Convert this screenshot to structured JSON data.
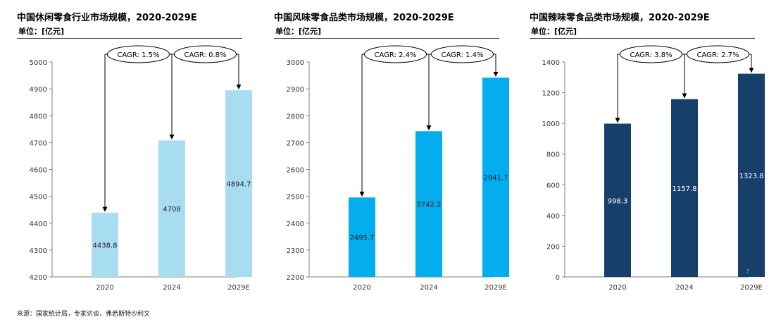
{
  "chart_data": [
    {
      "type": "bar",
      "title": "中国休闲零食行业市场规模，2020-2029E",
      "unit_label": "单位：[亿元]",
      "categories": [
        "2020",
        "2024",
        "2029E"
      ],
      "values": [
        4438.8,
        4708,
        4894.7
      ],
      "value_labels": [
        "4438.8",
        "4708",
        "4894.7"
      ],
      "ylim": [
        4200,
        5000
      ],
      "yticks": [
        4200,
        4300,
        4400,
        4500,
        4600,
        4700,
        4800,
        4900,
        5000
      ],
      "bar_color": "#a8dcf0",
      "label_color": "#222222",
      "cagr": [
        {
          "text": "CAGR: 1.5%",
          "from": 0
        },
        {
          "text": "CAGR: 0.8%",
          "from": 1
        }
      ]
    },
    {
      "type": "bar",
      "title": "中国风味零食品类市场规模，2020-2029E",
      "unit_label": "单位：[亿元]",
      "categories": [
        "2020",
        "2024",
        "2029E"
      ],
      "values": [
        2495.7,
        2742.2,
        2941.7
      ],
      "value_labels": [
        "2495.7",
        "2742.2",
        "2941.7"
      ],
      "ylim": [
        2200,
        3000
      ],
      "yticks": [
        2200,
        2300,
        2400,
        2500,
        2600,
        2700,
        2800,
        2900,
        3000
      ],
      "bar_color": "#03adee",
      "label_color": "#222222",
      "cagr": [
        {
          "text": "CAGR: 2.4%",
          "from": 0
        },
        {
          "text": "CAGR: 1.4%",
          "from": 1
        }
      ]
    },
    {
      "type": "bar",
      "title": "中国辣味零食品类市场规模，2020-2029E",
      "unit_label": "单位：[亿元]",
      "categories": [
        "2020",
        "2024",
        "2029E"
      ],
      "values": [
        998.3,
        1157.8,
        1323.8
      ],
      "value_labels": [
        "998.3",
        "1157.8",
        "1323.8"
      ],
      "ylim": [
        0,
        1400
      ],
      "yticks": [
        0,
        200,
        400,
        600,
        800,
        1000,
        1200,
        1400
      ],
      "bar_color": "#173f6b",
      "label_color": "#ffffff",
      "cagr": [
        {
          "text": "CAGR: 3.8%",
          "from": 0
        },
        {
          "text": "CAGR: 2.7%",
          "from": 1
        }
      ]
    }
  ],
  "footer": {
    "source": "来源：国家统计局，专家访谈，弗若斯特沙利文",
    "page_number": "7"
  }
}
